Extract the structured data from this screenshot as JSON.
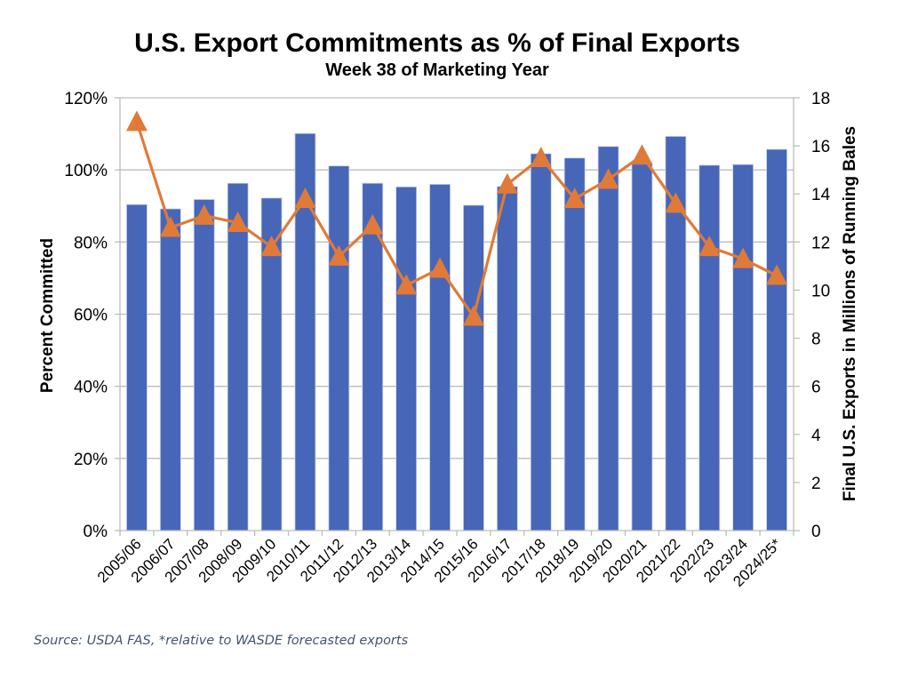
{
  "chart_data": {
    "type": "bar",
    "title": "U.S. Export Commitments as % of Final Exports",
    "subtitle": "Week 38 of Marketing Year",
    "xlabel": "",
    "ylabel": "Percent Committed",
    "y2label": "Final U.S. Exports in Millions of Running Bales",
    "ylim": [
      0,
      120
    ],
    "y2lim": [
      0,
      18
    ],
    "yticks": [
      "0%",
      "20%",
      "40%",
      "60%",
      "80%",
      "100%",
      "120%"
    ],
    "y2ticks": [
      "0",
      "2",
      "4",
      "6",
      "8",
      "10",
      "12",
      "14",
      "16",
      "18"
    ],
    "grid": true,
    "legend": "none",
    "categories": [
      "2005/06",
      "2006/07",
      "2007/08",
      "2008/09",
      "2009/10",
      "2010/11",
      "2011/12",
      "2012/13",
      "2013/14",
      "2014/15",
      "2015/16",
      "2016/17",
      "2017/18",
      "2018/19",
      "2019/20",
      "2020/21",
      "2021/22",
      "2022/23",
      "2023/24",
      "2024/25*"
    ],
    "series": [
      {
        "name": "Percent Committed",
        "type": "bar",
        "axis": "left",
        "color": "#4766B8",
        "values": [
          90.4,
          89.2,
          91.8,
          96.3,
          92.2,
          110.1,
          101.1,
          96.3,
          95.3,
          96.0,
          90.2,
          95.4,
          104.5,
          103.3,
          106.5,
          102.0,
          109.3,
          101.3,
          101.5,
          105.7
        ]
      },
      {
        "name": "Final U.S. Exports (Million Running Bales)",
        "type": "line",
        "marker": "triangle",
        "axis": "right",
        "color": "#E07A38",
        "values": [
          17.0,
          12.6,
          13.1,
          12.8,
          11.8,
          13.8,
          11.4,
          12.7,
          10.2,
          10.9,
          8.9,
          14.4,
          15.5,
          13.8,
          14.6,
          15.6,
          13.6,
          11.8,
          11.3,
          10.6
        ]
      }
    ]
  },
  "footer": {
    "source": "Source: USDA FAS, *relative to WASDE forecasted exports"
  }
}
